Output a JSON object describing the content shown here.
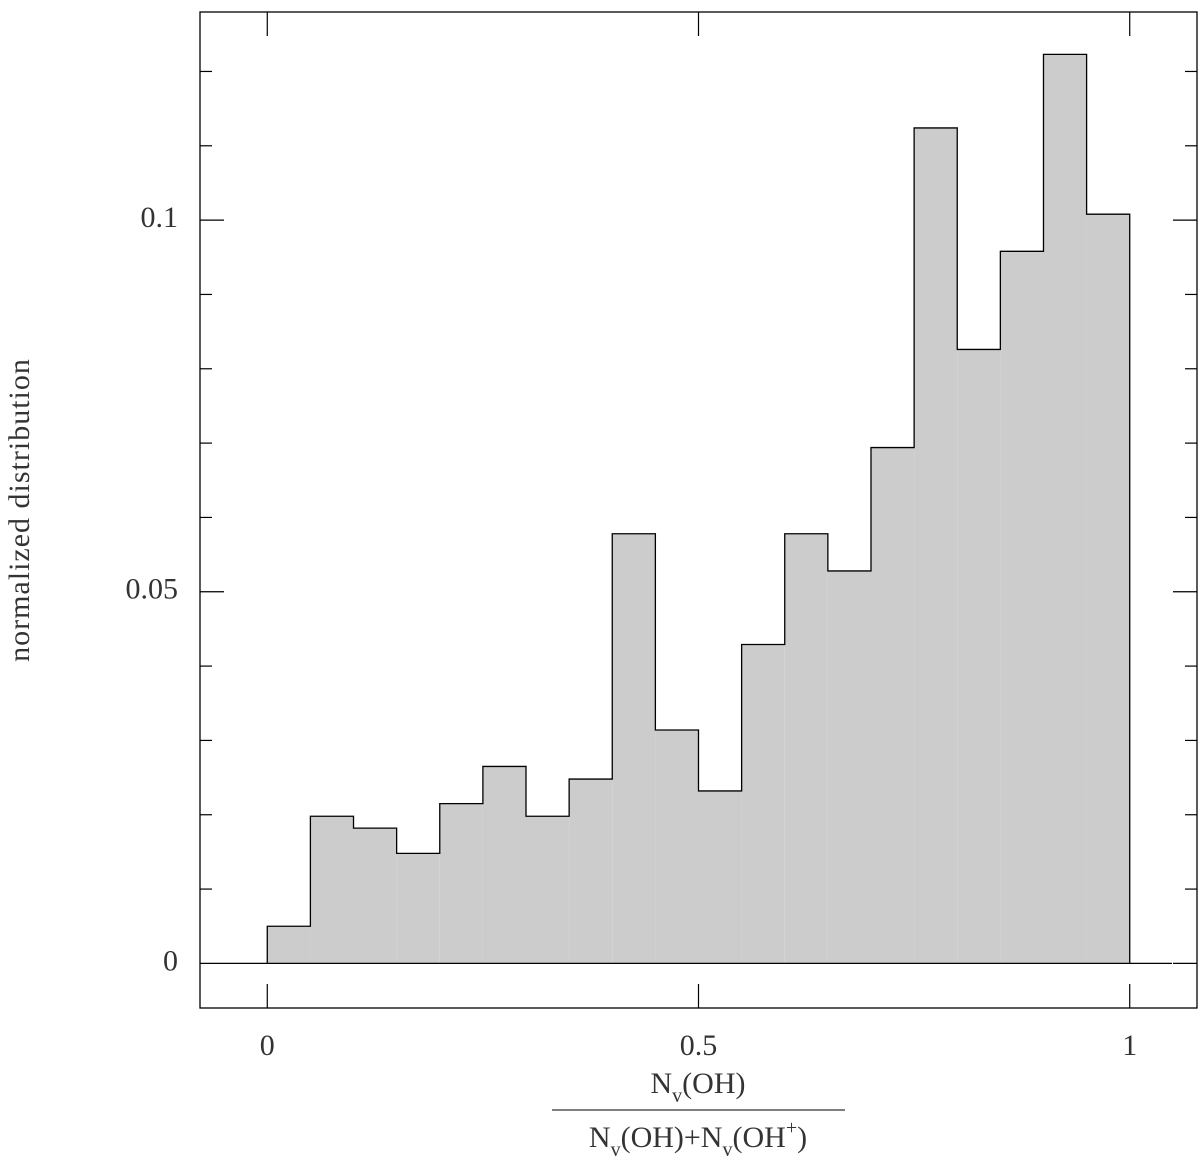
{
  "chart_data": {
    "type": "histogram",
    "bins": [
      0,
      0.05,
      0.1,
      0.15,
      0.2,
      0.25,
      0.3,
      0.35,
      0.4,
      0.45,
      0.5,
      0.55,
      0.6,
      0.65,
      0.7,
      0.75,
      0.8,
      0.85,
      0.9,
      0.95,
      1
    ],
    "values": [
      0.005,
      0.0198,
      0.0182,
      0.0148,
      0.0215,
      0.0265,
      0.0198,
      0.0248,
      0.0578,
      0.0314,
      0.0232,
      0.0429,
      0.0578,
      0.0528,
      0.0694,
      0.1124,
      0.0826,
      0.0958,
      0.1223,
      0.1008
    ],
    "color": "#cccccc",
    "edge_color": "#000000",
    "xlim": [
      -0.078,
      1.078
    ],
    "ylim": [
      -0.006,
      0.128
    ],
    "xticks": [
      0,
      0.5,
      {
        "value": 1,
        "label": "1"
      }
    ],
    "yticks": [
      0,
      0.05,
      0.1
    ],
    "yminorticks": [
      0.01,
      0.02,
      0.03,
      0.04,
      0.06,
      0.07,
      0.08,
      0.09,
      0.11,
      0.12
    ],
    "y_label": "normalized distribution",
    "x_label": {
      "numerator": [
        {
          "text": "N",
          "pos": "base"
        },
        {
          "text": "v",
          "pos": "sub"
        },
        {
          "text": "(OH)",
          "pos": "base"
        }
      ],
      "denominator": [
        {
          "text": "N",
          "pos": "base"
        },
        {
          "text": "v",
          "pos": "sub"
        },
        {
          "text": "(OH)+N",
          "pos": "base"
        },
        {
          "text": "v",
          "pos": "sub"
        },
        {
          "text": "(OH",
          "pos": "base"
        },
        {
          "text": "+",
          "pos": "super"
        },
        {
          "text": ")",
          "pos": "base"
        }
      ]
    }
  }
}
